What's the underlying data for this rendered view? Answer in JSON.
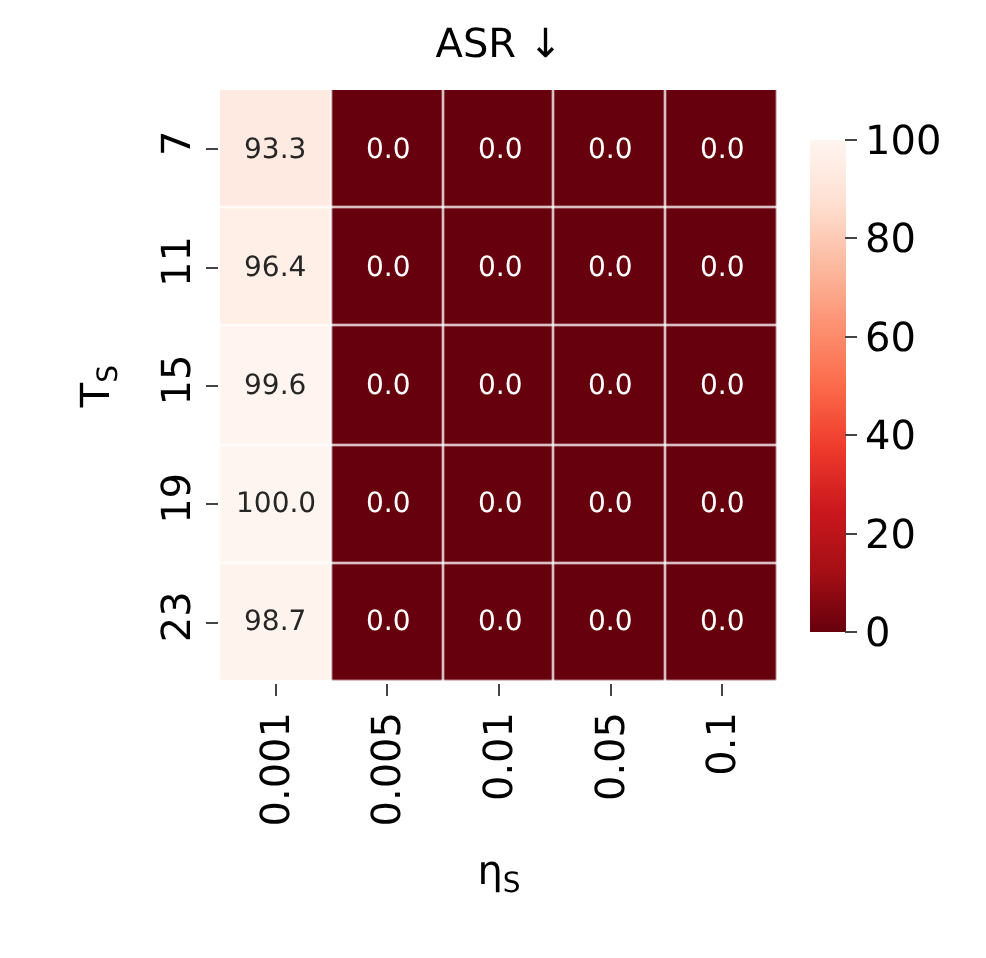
{
  "chart_data": {
    "type": "heatmap",
    "title": "ASR ↓",
    "xlabel": "η$_{S}$",
    "ylabel": "T$_{S}$",
    "categories": [
      "0.001",
      "0.005",
      "0.01",
      "0.05",
      "0.1"
    ],
    "y_categories": [
      "7",
      "11",
      "15",
      "19",
      "23"
    ],
    "cells": [
      [
        93.3,
        0,
        0,
        0,
        0
      ],
      [
        96.4,
        0,
        0,
        0,
        0
      ],
      [
        99.6,
        0,
        0,
        0,
        0
      ],
      [
        100,
        0,
        0,
        0,
        0
      ],
      [
        98.7,
        0,
        0,
        0,
        0
      ]
    ],
    "cell_labels": [
      [
        "93.3",
        "0.0",
        "0.0",
        "0.0",
        "0.0"
      ],
      [
        "96.4",
        "0.0",
        "0.0",
        "0.0",
        "0.0"
      ],
      [
        "99.6",
        "0.0",
        "0.0",
        "0.0",
        "0.0"
      ],
      [
        "100.0",
        "0.0",
        "0.0",
        "0.0",
        "0.0"
      ],
      [
        "98.7",
        "0.0",
        "0.0",
        "0.0",
        "0.0"
      ]
    ],
    "clim": [
      0,
      100
    ],
    "cticks": [
      0,
      20,
      40,
      60,
      80,
      100
    ]
  }
}
